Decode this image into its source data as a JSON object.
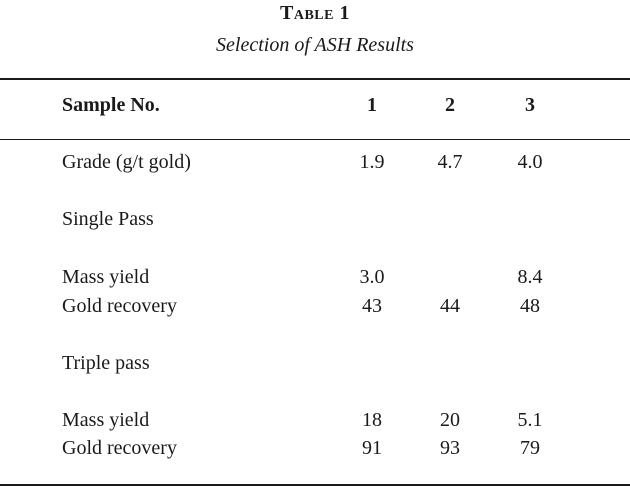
{
  "table": {
    "number": "Table 1",
    "caption": "Selection of ASH Results",
    "header": {
      "label": "Sample No.",
      "columns": [
        "1",
        "2",
        "3"
      ]
    },
    "grade": {
      "label": "Grade (g/t gold)",
      "values": [
        "1.9",
        "4.7",
        "4.0"
      ]
    },
    "single_pass": {
      "heading": "Single Pass",
      "mass_yield": {
        "label": "Mass yield",
        "values": [
          "3.0",
          "",
          "8.4"
        ]
      },
      "gold_recovery": {
        "label": "Gold recovery",
        "values": [
          "43",
          "44",
          "48"
        ]
      }
    },
    "triple_pass": {
      "heading": "Triple pass",
      "mass_yield": {
        "label": "Mass yield",
        "values": [
          "18",
          "20",
          "5.1"
        ]
      },
      "gold_recovery": {
        "label": "Gold recovery",
        "values": [
          "91",
          "93",
          "79"
        ]
      }
    }
  }
}
